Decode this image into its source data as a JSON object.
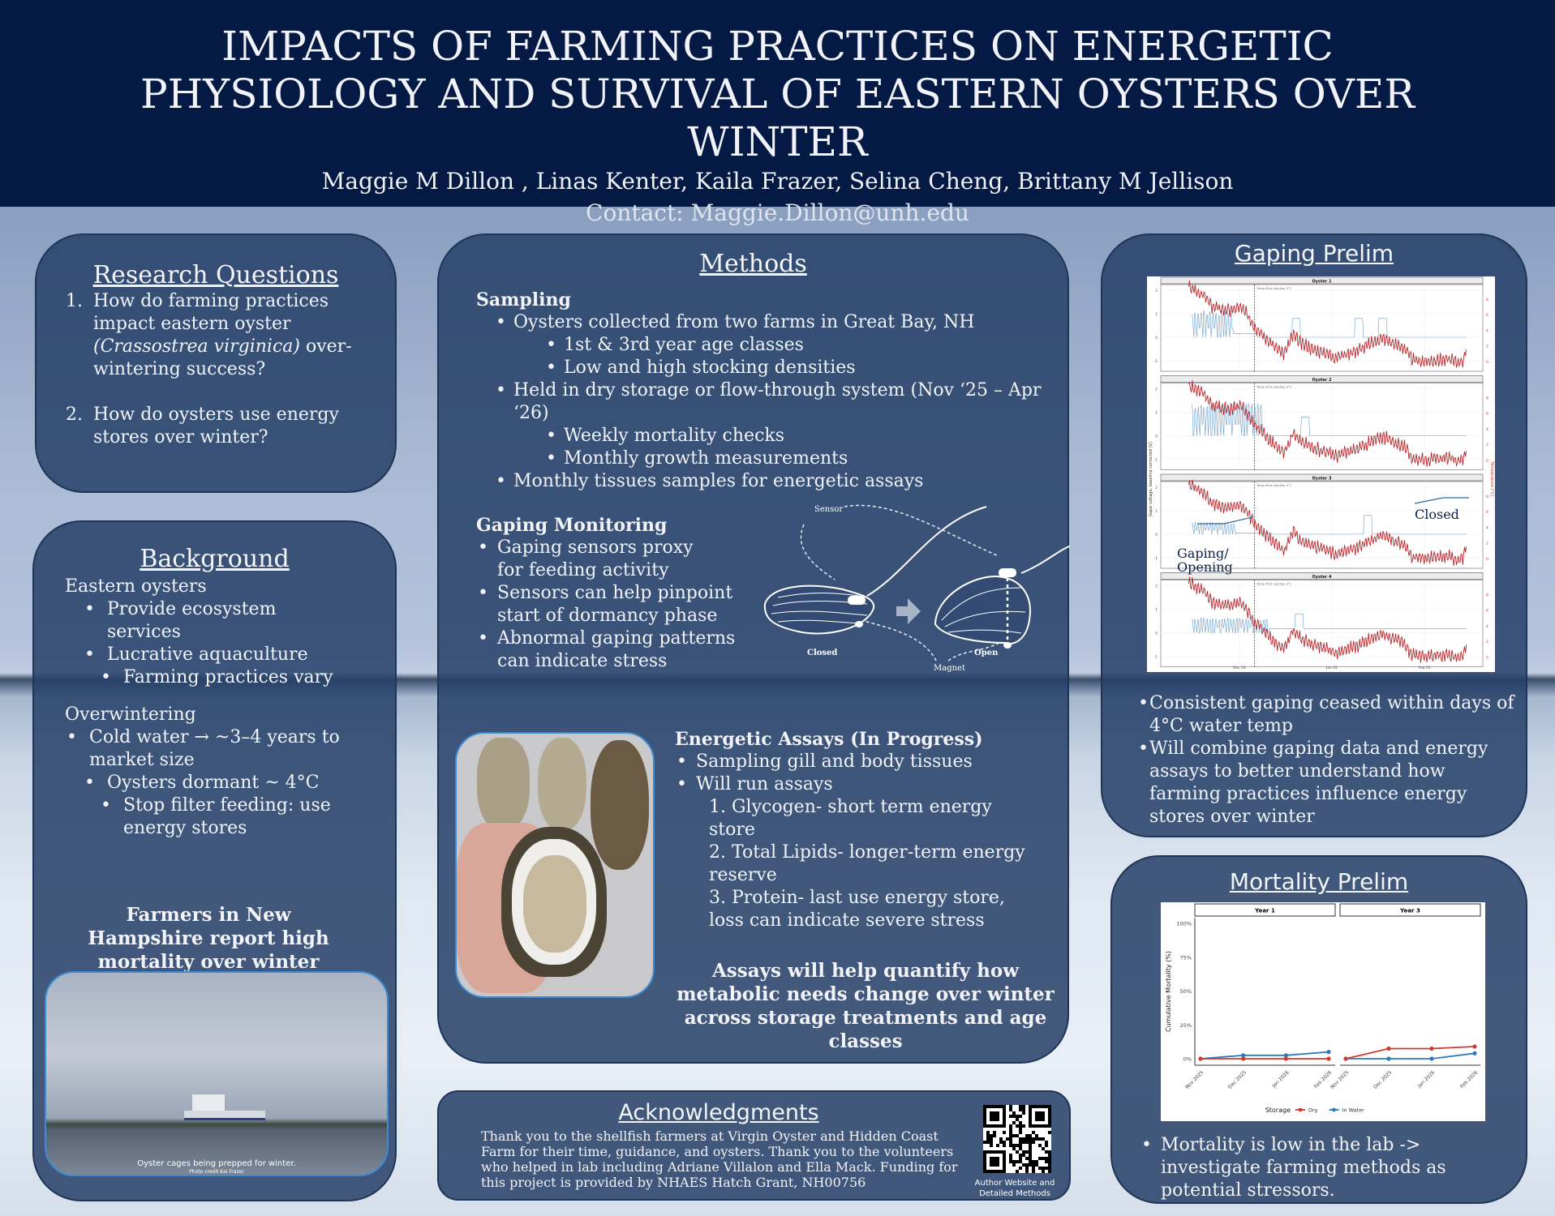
{
  "header": {
    "title_lines": [
      "IMPACTS OF FARMING PRACTICES ON ENERGETIC",
      "PHYSIOLOGY AND SURVIVAL OF EASTERN OYSTERS OVER",
      "WINTER"
    ],
    "authors": "Maggie M Dillon , Linas Kenter, Kaila Frazer, Selina Cheng, Brittany M Jellison",
    "contact": "Contact: Maggie.Dillon@unh.edu"
  },
  "research": {
    "title": "Research Questions ",
    "q1_num": "1.",
    "q1_a": "How do farming practices impact eastern oyster",
    "q1_italic": "(Crassostrea virginica)",
    "q1_b": "over-wintering success?",
    "q2_num": "2.",
    "q2": "How do oysters use energy stores over winter?"
  },
  "background": {
    "title": "Background",
    "eastern": "Eastern oysters",
    "items": [
      "Provide ecosystem services",
      "Lucrative aquaculture",
      "Farming practices vary"
    ],
    "overwinter": "Overwintering",
    "items2": [
      "Cold water → ~3–4 years to market size",
      "Oysters dormant ~ 4°C",
      "Stop filter feeding: use energy stores"
    ],
    "callout": "Farmers in New Hampshire report high mortality over winter",
    "photo_caption": "Oyster cages being prepped for winter.",
    "photo_credit": "Photo credit Kai Frazer"
  },
  "methods": {
    "title": "Methods",
    "sampling": "Sampling",
    "s1": "Oysters collected from two farms in Great Bay, NH",
    "s1a": "1st & 3rd year age classes",
    "s1b": "Low and high stocking densities",
    "s2": "Held in dry storage or flow-through system (Nov ‘25 – Apr ‘26)",
    "s2a": "Weekly mortality checks",
    "s2b": "Monthly growth measurements",
    "s3": "Monthly tissues samples for energetic assays",
    "gaping": "Gaping Monitoring",
    "g": [
      "Gaping sensors proxy for feeding activity",
      "Sensors can help pinpoint start of dormancy phase",
      "Abnormal gaping patterns can indicate stress"
    ],
    "diagram": {
      "sensor": "Sensor",
      "magnet": "Magnet",
      "closed": "Closed",
      "open": "Open"
    },
    "assays_title": "Energetic Assays (In Progress)",
    "a1": "Sampling gill and body tissues",
    "a2": "Will run assays",
    "a_list": [
      "1. Glycogen- short term energy store",
      "2. Total Lipids- longer-term energy reserve",
      "3. Protein- last use energy store, loss can indicate severe stress"
    ],
    "summary": "Assays will help quantify how metabolic needs change over winter across storage treatments and age classes"
  },
  "ack": {
    "title": "Acknowledgments",
    "text": "Thank you  to the shellfish farmers at Virgin Oyster and Hidden Coast Farm for their time, guidance, and oysters. Thank you to the volunteers who helped in lab including Adriane Villalon and Ella Mack. Funding for this project is provided by NHAES Hatch Grant, NH00756",
    "qr_label": "Author Website and Detailed Methods"
  },
  "gaping": {
    "title": "Gaping Prelim",
    "bullets": [
      "Consistent gaping ceased within days of 4°C water temp",
      "Will combine gaping data and energy assays to better understand how farming practices influence energy stores over winter"
    ],
    "annot_closed": "Closed",
    "annot_gaping": "Gaping/ Opening"
  },
  "mortality": {
    "title": "Mortality Prelim",
    "bullet": "Mortality is low in the lab -> investigate farming methods as potential stressors."
  },
  "chart_data": [
    {
      "type": "line",
      "title": "Gaping vs temperature",
      "facets": [
        "Oyster 1",
        "Oyster 2",
        "Oyster 3",
        "Oyster 4"
      ],
      "ylabel": "Gape voltage, baseline corrected (V)",
      "ylabel_right": "Temperature (°C)",
      "yticks": [
        "2",
        "1",
        "0",
        "-1"
      ],
      "yticks_right": [
        "8",
        "6",
        "4",
        "2",
        "0"
      ],
      "xticks": [
        "Dec 01",
        "Jan 01",
        "Feb 01"
      ],
      "annotation": "Temp first reaches 4°C",
      "annotation_day": 5,
      "x_unit": "days from Dec 01",
      "temperature": {
        "days": [
          -17,
          -12,
          -9,
          -3,
          0,
          2,
          5,
          8,
          10,
          15,
          18,
          20,
          25,
          30,
          32,
          40,
          45,
          48,
          52,
          55,
          58,
          62,
          70,
          73,
          75,
          76
        ],
        "values": [
          9.5,
          8.5,
          7.0,
          6.5,
          7.0,
          6.3,
          4.5,
          3.5,
          2.5,
          1.0,
          3.5,
          2.5,
          1.5,
          1.0,
          0.5,
          1.5,
          2.5,
          3.0,
          2.2,
          1.8,
          0.2,
          0.0,
          0.3,
          -0.1,
          0.2,
          1.5
        ]
      },
      "gape": [
        {
          "name": "Oyster 1",
          "gaping_end": -2,
          "open": 1.0,
          "closed_baseline": 0.15,
          "baseline_end": 6,
          "spikes": [
            19,
            40,
            48
          ]
        },
        {
          "name": "Oyster 2",
          "gaping_end": 8,
          "open": 1.2,
          "closed_baseline": 0.1,
          "baseline_end": 8,
          "spikes": [
            22
          ]
        },
        {
          "name": "Oyster 3",
          "gaping_end": -1,
          "open": 0.45,
          "closed_baseline": 0.05,
          "baseline_end": 10,
          "spikes": [
            43
          ]
        },
        {
          "name": "Oyster 4",
          "gaping_end": 10,
          "open": 0.55,
          "closed_baseline": 0.18,
          "baseline_end": 76,
          "spikes": [
            20
          ]
        }
      ]
    },
    {
      "type": "line",
      "facets": [
        "Year 1",
        "Year 3"
      ],
      "categories": [
        "Nov 2025",
        "Dec 2025",
        "Jan 2026",
        "Feb 2026"
      ],
      "ylabel": "Cumulative Mortality (%)",
      "yticks": [
        "0%",
        "25%",
        "50%",
        "75%",
        "100%"
      ],
      "ylim": [
        0,
        100
      ],
      "legend_title": "Storage",
      "legend_position": "bottom",
      "series": [
        {
          "name": "Dry",
          "color": "#d03a2f",
          "values": {
            "Year 1": [
              0,
              0,
              0,
              0
            ],
            "Year 3": [
              0,
              7.5,
              7.5,
              9
            ]
          }
        },
        {
          "name": "In Water",
          "color": "#2f78b7",
          "values": {
            "Year 1": [
              0,
              2.5,
              2.5,
              5
            ],
            "Year 3": [
              0,
              0,
              0,
              4
            ]
          }
        }
      ]
    }
  ]
}
